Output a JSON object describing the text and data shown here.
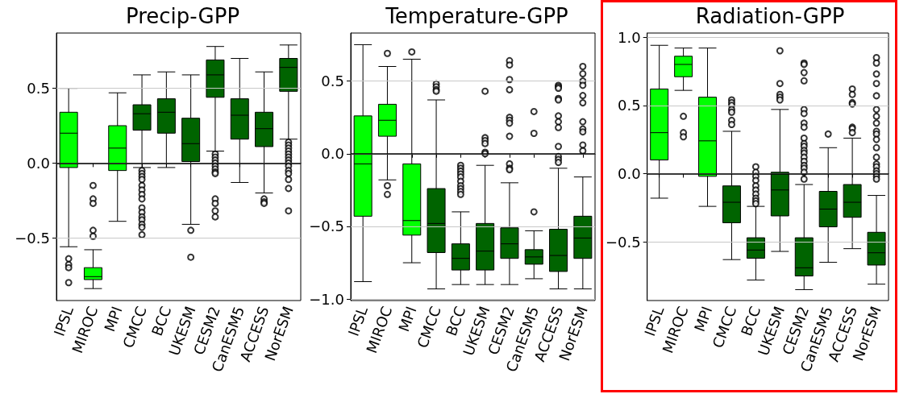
{
  "chart_data": [
    {
      "type": "box",
      "title": "Precip-GPP",
      "categories": [
        "IPSL",
        "MIROC",
        "MPI",
        "CMCC",
        "BCC",
        "UKESM",
        "CESM2",
        "CanESM5",
        "ACCESS",
        "NorESM"
      ],
      "colors": [
        "#00ff00",
        "#00ff00",
        "#00ff00",
        "#006400",
        "#006400",
        "#006400",
        "#006400",
        "#006400",
        "#006400",
        "#006400"
      ],
      "boxes": [
        {
          "low": -0.56,
          "q1": -0.03,
          "median": 0.2,
          "q3": 0.34,
          "high": 0.5,
          "outliers": [
            -0.64,
            -0.68,
            -0.7,
            -0.8
          ]
        },
        {
          "low": -0.84,
          "q1": -0.78,
          "median": -0.76,
          "q3": -0.7,
          "high": -0.58,
          "outliers": [
            -0.15,
            -0.24,
            -0.27,
            -0.45,
            -0.49
          ]
        },
        {
          "low": -0.39,
          "q1": -0.05,
          "median": 0.1,
          "q3": 0.25,
          "high": 0.47
        },
        {
          "low": -0.03,
          "q1": 0.22,
          "median": 0.33,
          "q3": 0.39,
          "high": 0.59,
          "outliers": [
            -0.05,
            -0.07,
            -0.09,
            -0.11,
            -0.15,
            -0.18,
            -0.21,
            -0.24,
            -0.3,
            -0.33,
            -0.36,
            -0.38,
            -0.41,
            -0.43,
            -0.48
          ]
        },
        {
          "low": -0.03,
          "q1": 0.2,
          "median": 0.34,
          "q3": 0.43,
          "high": 0.61
        },
        {
          "low": -0.41,
          "q1": 0.01,
          "median": 0.13,
          "q3": 0.3,
          "high": 0.59,
          "outliers": [
            -0.45,
            -0.63
          ]
        },
        {
          "low": 0.08,
          "q1": 0.44,
          "median": 0.59,
          "q3": 0.69,
          "high": 0.78,
          "outliers": [
            0.06,
            0.04,
            0.02,
            0,
            -0.02,
            -0.04,
            -0.06,
            -0.07,
            -0.24,
            -0.27,
            -0.32,
            -0.36
          ]
        },
        {
          "low": -0.13,
          "q1": 0.16,
          "median": 0.32,
          "q3": 0.43,
          "high": 0.7
        },
        {
          "low": -0.2,
          "q1": 0.11,
          "median": 0.23,
          "q3": 0.34,
          "high": 0.61,
          "outliers": [
            -0.24,
            -0.26,
            -0.27
          ]
        },
        {
          "low": 0.16,
          "q1": 0.48,
          "median": 0.64,
          "q3": 0.7,
          "high": 0.79,
          "outliers": [
            0.14,
            0.12,
            0.1,
            0.08,
            0.06,
            0.04,
            0.02,
            0,
            -0.02,
            -0.05,
            -0.07,
            -0.11,
            -0.17,
            -0.32
          ]
        }
      ],
      "ylim": [
        -0.92,
        0.87
      ],
      "yticks": [
        {
          "value": -0.5,
          "label": "−0.5"
        },
        {
          "value": 0,
          "label": "0.0"
        },
        {
          "value": 0.5,
          "label": "0.5"
        }
      ],
      "grid": "y",
      "ref_lines": [
        {
          "axis": "y",
          "value": 0,
          "color": "#000000"
        }
      ]
    },
    {
      "type": "box",
      "title": "Temperature-GPP",
      "categories": [
        "IPSL",
        "MIROC",
        "MPI",
        "CMCC",
        "BCC",
        "UKESM",
        "CESM2",
        "CanESM5",
        "ACCESS",
        "NorESM"
      ],
      "colors": [
        "#00ff00",
        "#00ff00",
        "#00ff00",
        "#006400",
        "#006400",
        "#006400",
        "#006400",
        "#006400",
        "#006400",
        "#006400"
      ],
      "boxes": [
        {
          "low": -0.88,
          "q1": -0.43,
          "median": -0.07,
          "q3": 0.26,
          "high": 0.75
        },
        {
          "low": -0.18,
          "q1": 0.12,
          "median": 0.23,
          "q3": 0.34,
          "high": 0.6,
          "outliers": [
            0.69,
            -0.22,
            -0.28
          ]
        },
        {
          "low": -0.75,
          "q1": -0.56,
          "median": -0.46,
          "q3": -0.07,
          "high": 0.65,
          "outliers": [
            0.7
          ]
        },
        {
          "low": -0.93,
          "q1": -0.68,
          "median": -0.48,
          "q3": -0.24,
          "high": 0.37,
          "outliers": [
            0.48,
            0.46,
            0.44,
            0.43
          ]
        },
        {
          "low": -0.9,
          "q1": -0.8,
          "median": -0.72,
          "q3": -0.62,
          "high": -0.4,
          "outliers": [
            -0.08,
            -0.1,
            -0.12,
            -0.14,
            -0.16,
            -0.19,
            -0.22,
            -0.24,
            -0.26,
            -0.28
          ]
        },
        {
          "low": -0.9,
          "q1": -0.8,
          "median": -0.67,
          "q3": -0.48,
          "high": -0.08,
          "outliers": [
            0.43,
            0.11,
            0.09,
            0.07,
            0.01,
            0
          ]
        },
        {
          "low": -0.9,
          "q1": -0.72,
          "median": -0.62,
          "q3": -0.51,
          "high": -0.2,
          "outliers": [
            0.64,
            0.61,
            0.51,
            0.44,
            0.25,
            0.23,
            0.21,
            0.12,
            -0.07,
            -0.1,
            -0.11
          ]
        },
        {
          "low": -0.86,
          "q1": -0.76,
          "median": -0.71,
          "q3": -0.66,
          "high": -0.53,
          "outliers": [
            0.29,
            0.14,
            -0.4
          ]
        },
        {
          "low": -0.93,
          "q1": -0.81,
          "median": -0.7,
          "q3": -0.52,
          "high": -0.1,
          "outliers": [
            0.47,
            0.46,
            0.45,
            0.38,
            0.37,
            0.26,
            0.22,
            0.18,
            0.05,
            -0.02,
            -0.04,
            -0.06
          ]
        },
        {
          "low": -0.93,
          "q1": -0.72,
          "median": -0.58,
          "q3": -0.43,
          "high": -0.16,
          "outliers": [
            0.6,
            0.55,
            0.5,
            0.47,
            0.4,
            0.35,
            0.22,
            0.17,
            0.15,
            0.06,
            0.02
          ]
        }
      ],
      "ylim": [
        -1.01,
        0.83
      ],
      "yticks": [
        {
          "value": -1,
          "label": "−1.0"
        },
        {
          "value": -0.5,
          "label": "−0.5"
        },
        {
          "value": 0,
          "label": "0.0"
        },
        {
          "value": 0.5,
          "label": "0.5"
        }
      ],
      "grid": "y",
      "ref_lines": [
        {
          "axis": "y",
          "value": 0,
          "color": "#000000"
        }
      ]
    },
    {
      "type": "box",
      "title": "Radiation-GPP",
      "categories": [
        "IPSL",
        "MIROC",
        "MPI",
        "CMCC",
        "BCC",
        "UKESM",
        "CESM2",
        "CanESM5",
        "ACCESS",
        "NorESM"
      ],
      "colors": [
        "#00ff00",
        "#00ff00",
        "#00ff00",
        "#006400",
        "#006400",
        "#006400",
        "#006400",
        "#006400",
        "#006400",
        "#006400"
      ],
      "boxes": [
        {
          "low": -0.18,
          "q1": 0.1,
          "median": 0.3,
          "q3": 0.62,
          "high": 0.94
        },
        {
          "low": 0.61,
          "q1": 0.71,
          "median": 0.8,
          "q3": 0.86,
          "high": 0.92,
          "outliers": [
            0.42,
            0.3,
            0.27
          ]
        },
        {
          "low": -0.24,
          "q1": -0.02,
          "median": 0.24,
          "q3": 0.56,
          "high": 0.92
        },
        {
          "low": -0.63,
          "q1": -0.36,
          "median": -0.21,
          "q3": -0.09,
          "high": 0.31,
          "outliers": [
            0.54,
            0.52,
            0.5,
            0.47,
            0.45,
            0.39,
            0.36
          ]
        },
        {
          "low": -0.78,
          "q1": -0.62,
          "median": -0.56,
          "q3": -0.47,
          "high": -0.24,
          "outliers": [
            0.05,
            0.01,
            -0.02,
            -0.05,
            -0.09,
            -0.12,
            -0.15,
            -0.18,
            -0.2,
            -0.22
          ]
        },
        {
          "low": -0.57,
          "q1": -0.31,
          "median": -0.12,
          "q3": 0.01,
          "high": 0.47,
          "outliers": [
            0.9,
            0.66,
            0.58,
            0.56,
            0.54
          ]
        },
        {
          "low": -0.85,
          "q1": -0.75,
          "median": -0.69,
          "q3": -0.47,
          "high": -0.08,
          "outliers": [
            0.81,
            0.8,
            0.74,
            0.68,
            0.47,
            0.44,
            0.37,
            0.34,
            0.26,
            0.22,
            0.2,
            0.17,
            0.15,
            0.12,
            0.09,
            0.06,
            0.04,
            0.01,
            -0.04
          ]
        },
        {
          "low": -0.65,
          "q1": -0.39,
          "median": -0.26,
          "q3": -0.13,
          "high": 0.19,
          "outliers": [
            0.29
          ]
        },
        {
          "low": -0.55,
          "q1": -0.32,
          "median": -0.21,
          "q3": -0.08,
          "high": 0.26,
          "outliers": [
            0.62,
            0.58,
            0.52,
            0.51,
            0.34,
            0.33,
            0.3
          ]
        },
        {
          "low": -0.81,
          "q1": -0.67,
          "median": -0.58,
          "q3": -0.43,
          "high": -0.16,
          "outliers": [
            0.85,
            0.81,
            0.73,
            0.66,
            0.57,
            0.47,
            0.42,
            0.37,
            0.31,
            0.29,
            0.25,
            0.19,
            0.12,
            0.07,
            0.05,
            0.02,
            0,
            -0.02,
            -0.04
          ]
        }
      ],
      "ylim": [
        -0.93,
        1.03
      ],
      "yticks": [
        {
          "value": -0.5,
          "label": "−0.5"
        },
        {
          "value": 0,
          "label": "0.0"
        },
        {
          "value": 0.5,
          "label": "0.5"
        },
        {
          "value": 1,
          "label": "1.0"
        }
      ],
      "grid": "y",
      "ref_lines": [
        {
          "axis": "y",
          "value": 0,
          "color": "#000000"
        }
      ]
    }
  ]
}
